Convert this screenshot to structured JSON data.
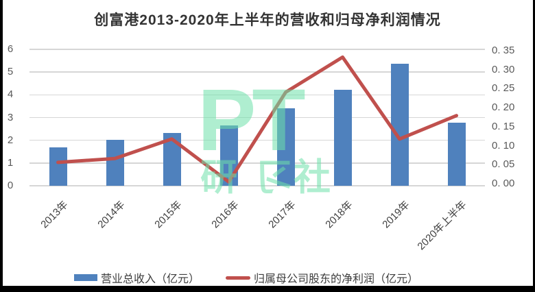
{
  "title": "创富港2013-2020年上半年的营收和归母净利润情况",
  "watermark": {
    "big": "PT",
    "small_chars": [
      "研",
      "习",
      "社"
    ],
    "color": "#6ee1aa"
  },
  "colors": {
    "bar": "#4f81bd",
    "line": "#c0504d",
    "grid": "#d6d6d6",
    "axis_text": "#595959",
    "frame": "#000000"
  },
  "chart_data": {
    "type": "bar",
    "subtype": "combo-bar-line",
    "title": "创富港2013-2020年上半年的营收和归母净利润情况",
    "categories": [
      "2013年",
      "2014年",
      "2015年",
      "2016年",
      "2017年",
      "2018年",
      "2019年",
      "2020年上半年"
    ],
    "series": [
      {
        "name": "营业总收入（亿元）",
        "type": "bar",
        "axis": "left",
        "color": "#4f81bd",
        "values": [
          1.7,
          2.01,
          2.33,
          2.66,
          3.42,
          4.21,
          5.36,
          2.77
        ]
      },
      {
        "name": "归属母公司股东的净利润（亿元）",
        "type": "line",
        "axis": "right",
        "color": "#c0504d",
        "values": [
          0.06,
          0.07,
          0.12,
          0.01,
          0.24,
          0.33,
          0.12,
          0.18
        ]
      }
    ],
    "left_axis": {
      "min": 0,
      "max": 6,
      "step": 1,
      "tick_labels": [
        "0",
        "1",
        "2",
        "3",
        "4",
        "5",
        "6"
      ]
    },
    "right_axis": {
      "min": 0,
      "max": 0.35,
      "step": 0.05,
      "tick_labels": [
        "0. 00",
        "0. 05",
        "0. 10",
        "0. 15",
        "0. 20",
        "0. 25",
        "0. 30",
        "0. 35"
      ]
    },
    "grid": true,
    "legend_position": "bottom",
    "x_tick_rotation": 45
  }
}
